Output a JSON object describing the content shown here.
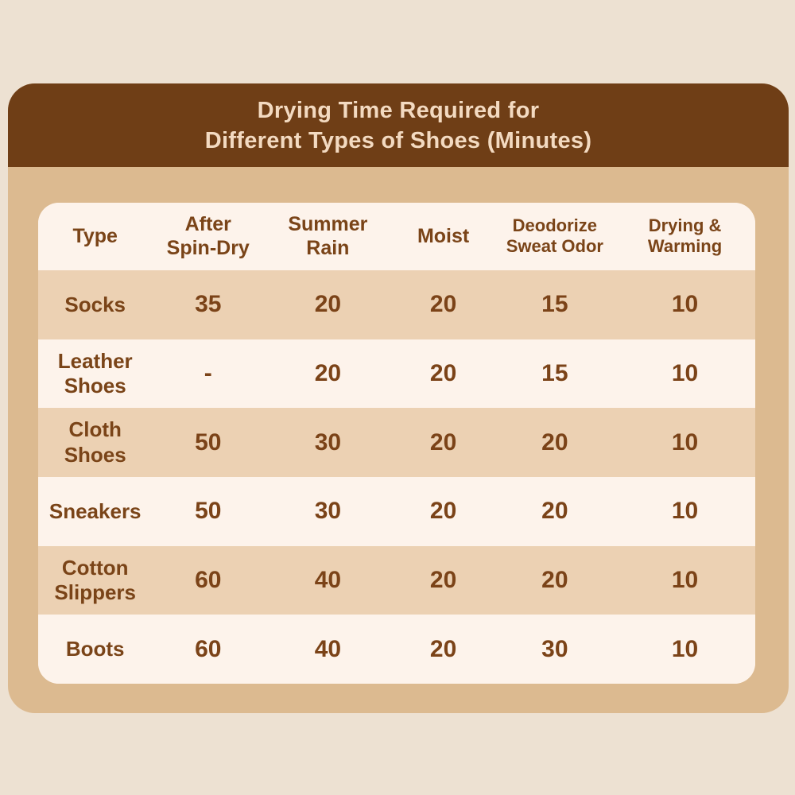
{
  "title": "Drying Time Required for\nDifferent Types of Shoes (Minutes)",
  "table": {
    "columns": [
      "Type",
      "After\nSpin-Dry",
      "Summer\nRain",
      "Moist",
      "Deodorize\nSweat Odor",
      "Drying &\nWarming"
    ],
    "rows": [
      {
        "type": "Socks",
        "v0": "35",
        "v1": "20",
        "v2": "20",
        "v3": "15",
        "v4": "10"
      },
      {
        "type": "Leather\nShoes",
        "v0": "-",
        "v1": "20",
        "v2": "20",
        "v3": "15",
        "v4": "10"
      },
      {
        "type": "Cloth\nShoes",
        "v0": "50",
        "v1": "30",
        "v2": "20",
        "v3": "20",
        "v4": "10"
      },
      {
        "type": "Sneakers",
        "v0": "50",
        "v1": "30",
        "v2": "20",
        "v3": "20",
        "v4": "10"
      },
      {
        "type": "Cotton\nSlippers",
        "v0": "60",
        "v1": "40",
        "v2": "20",
        "v3": "20",
        "v4": "10"
      },
      {
        "type": "Boots",
        "v0": "60",
        "v1": "40",
        "v2": "20",
        "v3": "30",
        "v4": "10"
      }
    ]
  },
  "chart_data": {
    "type": "table",
    "title": "Drying Time Required for Different Types of Shoes (Minutes)",
    "columns": [
      "Type",
      "After Spin-Dry",
      "Summer Rain",
      "Moist",
      "Deodorize Sweat Odor",
      "Drying & Warming"
    ],
    "rows": [
      [
        "Socks",
        35,
        20,
        20,
        15,
        10
      ],
      [
        "Leather Shoes",
        "-",
        20,
        20,
        15,
        10
      ],
      [
        "Cloth Shoes",
        50,
        30,
        20,
        20,
        10
      ],
      [
        "Sneakers",
        50,
        30,
        20,
        20,
        10
      ],
      [
        "Cotton Slippers",
        60,
        40,
        20,
        20,
        10
      ],
      [
        "Boots",
        60,
        40,
        20,
        30,
        10
      ]
    ],
    "layout": {
      "striped": true,
      "stripe_order": [
        "tan",
        "light"
      ]
    }
  },
  "colors": {
    "page_background": "#EDE1D2",
    "card_background": "#DCBA90",
    "header_background": "#6F3E16",
    "title_text": "#F3DAC1",
    "row_tan": "#ECD1B3",
    "row_light": "#FDF3EB",
    "text_brown": "#7A4418"
  }
}
